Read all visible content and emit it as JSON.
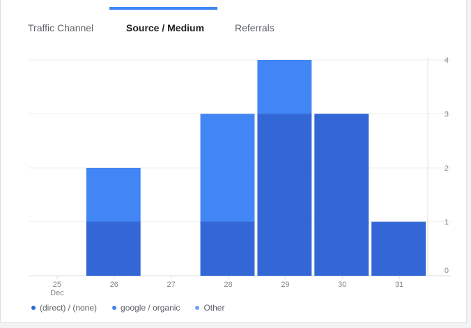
{
  "tabs": [
    {
      "label": "Traffic Channel",
      "active": false
    },
    {
      "label": "Source / Medium",
      "active": true
    },
    {
      "label": "Referrals",
      "active": false
    }
  ],
  "colors": {
    "direct": "#3367d6",
    "google_organic": "#4285f4",
    "other": "#72a4f6",
    "tab_indicator": "#4285f4"
  },
  "chart_data": {
    "type": "bar",
    "stacked": true,
    "categories": [
      "25",
      "26",
      "27",
      "28",
      "29",
      "30",
      "31"
    ],
    "x_tick_sublabels": {
      "25": "Dec"
    },
    "y_ticks": [
      0,
      1,
      2,
      3,
      4
    ],
    "ylim": [
      0,
      4
    ],
    "grid": true,
    "y_axis_side": "right",
    "legend_position": "bottom-left",
    "series": [
      {
        "name": "(direct) / (none)",
        "values": [
          0,
          1,
          0,
          1,
          3,
          3,
          1
        ]
      },
      {
        "name": "google / organic",
        "values": [
          0,
          1,
          0,
          2,
          1,
          0,
          0
        ]
      },
      {
        "name": "Other",
        "values": [
          0,
          0,
          0,
          0,
          0,
          0,
          0
        ]
      }
    ]
  }
}
